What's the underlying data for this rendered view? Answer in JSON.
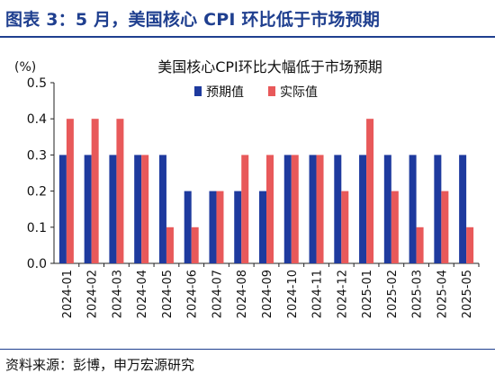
{
  "header": {
    "title": "图表 3：5 月，美国核心 CPI 环比低于市场预期"
  },
  "footer": {
    "source": "资料来源：彭博，申万宏源研究"
  },
  "colors": {
    "series_expected": "#1e3a9e",
    "series_actual": "#e8595a",
    "title": "#1f3f8f"
  },
  "chart_data": {
    "type": "bar",
    "title": "美国核心CPI环比大幅低于市场预期",
    "yunit": "(%)",
    "ylim": [
      0,
      0.5
    ],
    "yticks": [
      "0.5",
      "0.4",
      "0.3",
      "0.2",
      "0.1",
      "0.0"
    ],
    "legend_position": "top-right",
    "grid": false,
    "categories": [
      "2024-01",
      "2024-02",
      "2024-03",
      "2024-04",
      "2024-05",
      "2024-06",
      "2024-07",
      "2024-08",
      "2024-09",
      "2024-10",
      "2024-11",
      "2024-12",
      "2025-01",
      "2025-02",
      "2025-03",
      "2025-04",
      "2025-05"
    ],
    "series": [
      {
        "name": "预期值",
        "values": [
          0.3,
          0.3,
          0.3,
          0.3,
          0.3,
          0.2,
          0.2,
          0.2,
          0.2,
          0.3,
          0.3,
          0.3,
          0.3,
          0.3,
          0.3,
          0.3,
          0.3
        ]
      },
      {
        "name": "实际值",
        "values": [
          0.4,
          0.4,
          0.4,
          0.3,
          0.1,
          0.1,
          0.2,
          0.3,
          0.3,
          0.3,
          0.3,
          0.2,
          0.4,
          0.2,
          0.1,
          0.2,
          0.1
        ]
      }
    ]
  }
}
